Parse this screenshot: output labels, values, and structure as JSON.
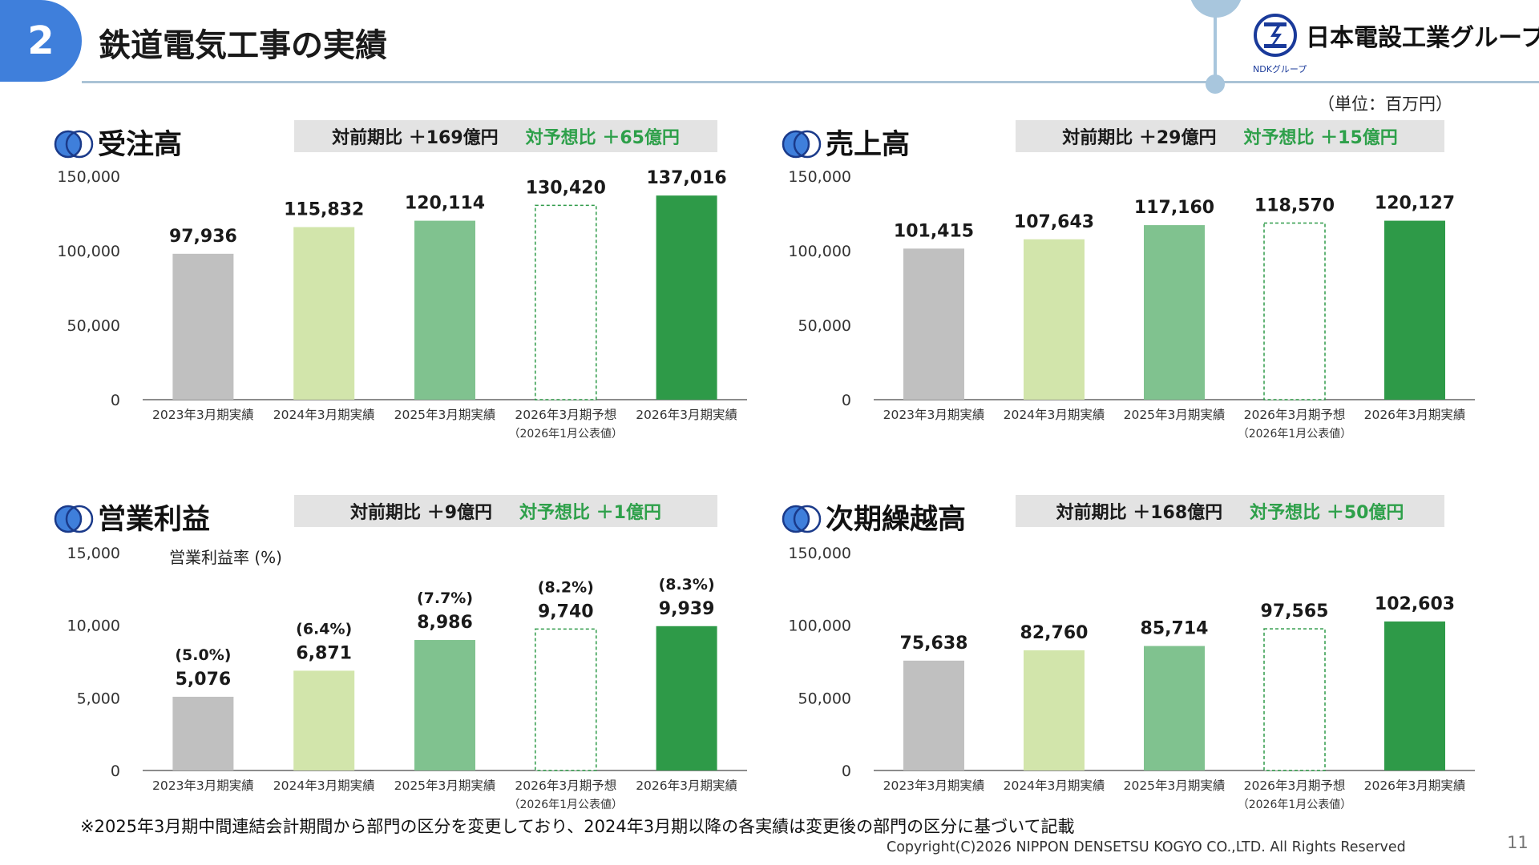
{
  "header": {
    "section_number": "2",
    "title": "鉄道電気工事の実績",
    "logo_text": "日本電設工業グループ",
    "logo_sub": "NDKグループ",
    "unit_note": "（単位：百万円）"
  },
  "colors": {
    "bar_fy2023": "#c0c0c0",
    "bar_fy2024": "#d2e5ab",
    "bar_fy2025": "#80c28f",
    "bar_forecast_outline": "#2e9a48",
    "bar_fy2026": "#2e9a48",
    "forecast_delta_text": "#2ea04a",
    "section_badge": "#3f7fdb"
  },
  "panels": [
    {
      "title": "受注高",
      "prev_year_comparison": "対前期比 ＋169億円",
      "forecast_comparison": "対予想比 ＋65億円"
    },
    {
      "title": "売上高",
      "prev_year_comparison": "対前期比 ＋29億円",
      "forecast_comparison": "対予想比 ＋15億円"
    },
    {
      "title": "営業利益",
      "prev_year_comparison": "対前期比 ＋9億円",
      "forecast_comparison": "対予想比 ＋1億円"
    },
    {
      "title": "次期繰越高",
      "prev_year_comparison": "対前期比 ＋168億円",
      "forecast_comparison": "対予想比 ＋50億円"
    }
  ],
  "chart_data": [
    {
      "type": "bar",
      "title": "受注高",
      "categories": [
        "2023年3月期実績",
        "2024年3月期実績",
        "2025年3月期実績",
        "2026年3月期予想",
        "2026年3月期実績"
      ],
      "category_sublabels": [
        "",
        "",
        "",
        "（2026年1月公表値）",
        ""
      ],
      "values": [
        97936,
        115832,
        120114,
        130420,
        137016
      ],
      "value_labels": [
        "97,936",
        "115,832",
        "120,114",
        "130,420",
        "137,016"
      ],
      "forecast_index": 3,
      "ylim": [
        0,
        150000
      ],
      "yticks": [
        0,
        50000,
        100000,
        150000
      ],
      "ytick_labels": [
        "0",
        "50,000",
        "100,000",
        "150,000"
      ],
      "ylabel": "",
      "grid": false
    },
    {
      "type": "bar",
      "title": "売上高",
      "categories": [
        "2023年3月期実績",
        "2024年3月期実績",
        "2025年3月期実績",
        "2026年3月期予想",
        "2026年3月期実績"
      ],
      "category_sublabels": [
        "",
        "",
        "",
        "（2026年1月公表値）",
        ""
      ],
      "values": [
        101415,
        107643,
        117160,
        118570,
        120127
      ],
      "value_labels": [
        "101,415",
        "107,643",
        "117,160",
        "118,570",
        "120,127"
      ],
      "forecast_index": 3,
      "ylim": [
        0,
        150000
      ],
      "yticks": [
        0,
        50000,
        100000,
        150000
      ],
      "ytick_labels": [
        "0",
        "50,000",
        "100,000",
        "150,000"
      ],
      "ylabel": "",
      "grid": false
    },
    {
      "type": "bar",
      "title": "営業利益",
      "categories": [
        "2023年3月期実績",
        "2024年3月期実績",
        "2025年3月期実績",
        "2026年3月期予想",
        "2026年3月期実績"
      ],
      "category_sublabels": [
        "",
        "",
        "",
        "（2026年1月公表値）",
        ""
      ],
      "values": [
        5076,
        6871,
        8986,
        9740,
        9939
      ],
      "value_labels": [
        "5,076",
        "6,871",
        "8,986",
        "9,740",
        "9,939"
      ],
      "secondary_labels": [
        "(5.0%)",
        "(6.4%)",
        "(7.7%)",
        "(8.2%)",
        "(8.3%)"
      ],
      "secondary_series_name": "営業利益率 (%)",
      "forecast_index": 3,
      "ylim": [
        0,
        15000
      ],
      "yticks": [
        0,
        5000,
        10000,
        15000
      ],
      "ytick_labels": [
        "0",
        "5,000",
        "10,000",
        "15,000"
      ],
      "ylabel": "",
      "grid": false
    },
    {
      "type": "bar",
      "title": "次期繰越高",
      "categories": [
        "2023年3月期実績",
        "2024年3月期実績",
        "2025年3月期実績",
        "2026年3月期予想",
        "2026年3月期実績"
      ],
      "category_sublabels": [
        "",
        "",
        "",
        "（2026年1月公表値）",
        ""
      ],
      "values": [
        75638,
        82760,
        85714,
        97565,
        102603
      ],
      "value_labels": [
        "75,638",
        "82,760",
        "85,714",
        "97,565",
        "102,603"
      ],
      "forecast_index": 3,
      "ylim": [
        0,
        150000
      ],
      "yticks": [
        0,
        50000,
        100000,
        150000
      ],
      "ytick_labels": [
        "0",
        "50,000",
        "100,000",
        "150,000"
      ],
      "ylabel": "",
      "grid": false
    }
  ],
  "footer": {
    "footnote": "※2025年3月期中間連結会計期間から部門の区分を変更しており、2024年3月期以降の各実績は変更後の部門の区分に基づいて記載",
    "copyright": "Copyright(C)2026 NIPPON DENSETSU KOGYO CO.,LTD. All Rights Reserved",
    "page_number": "11"
  }
}
